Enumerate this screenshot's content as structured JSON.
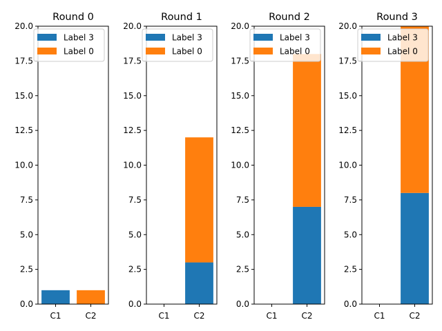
{
  "chart_data": [
    {
      "type": "bar",
      "stacked": true,
      "title": "Round 0",
      "categories": [
        "C1",
        "C2"
      ],
      "series": [
        {
          "name": "Label 3",
          "values": [
            1,
            0
          ]
        },
        {
          "name": "Label 0",
          "values": [
            0,
            1
          ]
        }
      ],
      "ylim": [
        0,
        20
      ],
      "yticks": [
        "0.0",
        "2.5",
        "5.0",
        "7.5",
        "10.0",
        "12.5",
        "15.0",
        "17.5",
        "20.0"
      ],
      "legend": "upper-left"
    },
    {
      "type": "bar",
      "stacked": true,
      "title": "Round 1",
      "categories": [
        "C1",
        "C2"
      ],
      "series": [
        {
          "name": "Label 3",
          "values": [
            0,
            3
          ]
        },
        {
          "name": "Label 0",
          "values": [
            0,
            9
          ]
        }
      ],
      "ylim": [
        0,
        20
      ],
      "yticks": [
        "0.0",
        "2.5",
        "5.0",
        "7.5",
        "10.0",
        "12.5",
        "15.0",
        "17.5",
        "20.0"
      ],
      "legend": "upper-left"
    },
    {
      "type": "bar",
      "stacked": true,
      "title": "Round 2",
      "categories": [
        "C1",
        "C2"
      ],
      "series": [
        {
          "name": "Label 3",
          "values": [
            0,
            7
          ]
        },
        {
          "name": "Label 0",
          "values": [
            0,
            11
          ]
        }
      ],
      "ylim": [
        0,
        20
      ],
      "yticks": [
        "0.0",
        "2.5",
        "5.0",
        "7.5",
        "10.0",
        "12.5",
        "15.0",
        "17.5",
        "20.0"
      ],
      "legend": "upper-left"
    },
    {
      "type": "bar",
      "stacked": true,
      "title": "Round 3",
      "categories": [
        "C1",
        "C2"
      ],
      "series": [
        {
          "name": "Label 3",
          "values": [
            0,
            8
          ]
        },
        {
          "name": "Label 0",
          "values": [
            0,
            13
          ]
        }
      ],
      "ylim": [
        0,
        20
      ],
      "yticks": [
        "0.0",
        "2.5",
        "5.0",
        "7.5",
        "10.0",
        "12.5",
        "15.0",
        "17.5",
        "20.0"
      ],
      "legend": "upper-left"
    }
  ],
  "colors": {
    "Label 3": "#1f77b4",
    "Label 0": "#ff7f0e"
  }
}
